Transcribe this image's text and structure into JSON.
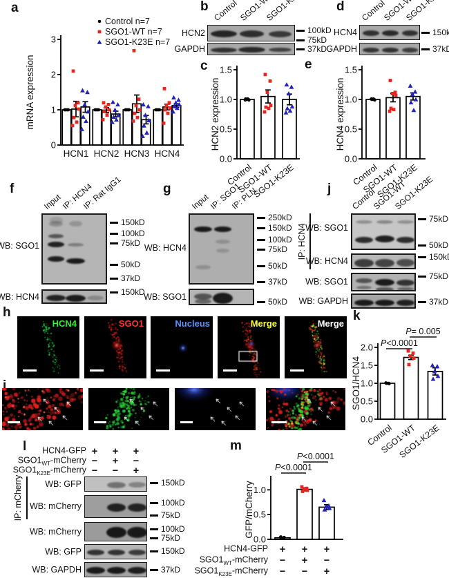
{
  "panel_labels": {
    "a": "a",
    "b": "b",
    "c": "c",
    "d": "d",
    "e": "e",
    "f": "f",
    "g": "g",
    "h": "h",
    "i": "i",
    "j": "j",
    "k": "k",
    "l": "l",
    "m": "m"
  },
  "colors": {
    "control": "#000000",
    "sgo1_wt": "#e8251f",
    "sgo1_k23e": "#2323bb",
    "green_channel": "#33ee33",
    "red_channel": "#ff3333",
    "blue_channel": "#5b93ff",
    "merge_yellow": "#ffff33",
    "merge_white": "#ffffff"
  },
  "chart_data": [
    {
      "id": "a",
      "type": "bar",
      "ylabel": "mRNA expression",
      "ylim": [
        0,
        3
      ],
      "yticks": [
        "0",
        "1",
        "2",
        "3"
      ],
      "categories": [
        "HCN1",
        "HCN2",
        "HCN3",
        "HCN4"
      ],
      "series": [
        {
          "name": "Control n=7",
          "marker": "circle",
          "color": "#000000"
        },
        {
          "name": "SGO1-WT n=7",
          "marker": "square",
          "color": "#e8251f"
        },
        {
          "name": "SGO1-K23E n=7",
          "marker": "triangle",
          "color": "#2323bb"
        }
      ],
      "bars": [
        [
          1.0,
          1.02,
          1.08
        ],
        [
          1.0,
          0.99,
          0.88
        ],
        [
          1.0,
          1.17,
          0.72
        ],
        [
          1.0,
          1.08,
          1.12
        ]
      ],
      "errors": [
        [
          0,
          0.22,
          0.15
        ],
        [
          0,
          0.07,
          0.08
        ],
        [
          0,
          0.25,
          0.12
        ],
        [
          0,
          0.08,
          0.05
        ]
      ],
      "points": [
        [
          [
            1.0,
            1.0,
            1.0,
            1.0,
            1.0,
            1.0,
            1.0
          ],
          [
            2.1,
            1.2,
            1.12,
            1.02,
            0.78,
            0.65,
            0.55
          ],
          [
            1.55,
            1.5,
            1.15,
            0.95,
            0.8,
            0.68,
            0.45
          ]
        ],
        [
          [
            1.0,
            1.0,
            1.0,
            1.0,
            1.0,
            1.0,
            1.0
          ],
          [
            1.2,
            1.15,
            1.08,
            1.0,
            0.95,
            0.85,
            0.72
          ],
          [
            1.22,
            1.15,
            1.0,
            0.85,
            0.8,
            0.72,
            0.65
          ]
        ],
        [
          [
            1.0,
            1.0,
            1.0,
            1.0,
            1.0,
            1.0,
            1.0
          ],
          [
            2.68,
            1.3,
            1.12,
            1.0,
            0.9,
            0.78,
            0.68
          ],
          [
            1.15,
            1.1,
            0.85,
            0.7,
            0.55,
            0.35,
            0.25
          ]
        ],
        [
          [
            1.0,
            1.0,
            1.0,
            1.0,
            1.0,
            1.0,
            1.0
          ],
          [
            1.6,
            1.2,
            1.12,
            1.05,
            1.0,
            0.9,
            0.62
          ],
          [
            1.35,
            1.28,
            1.2,
            1.15,
            1.1,
            1.05,
            0.95
          ]
        ]
      ],
      "legend_position": "top-left",
      "grid": false
    },
    {
      "id": "c",
      "type": "bar",
      "ylabel": "HCN2 expression",
      "ylim": [
        0,
        1.5
      ],
      "yticks": [
        "0.0",
        "0.5",
        "1.0",
        "1.5"
      ],
      "categories": [
        "Control",
        "SGO1-WT",
        "SGO1-K23E"
      ],
      "series": [
        {
          "name": "Control",
          "marker": "circle",
          "color": "#000000"
        },
        {
          "name": "SGO1-WT",
          "marker": "square",
          "color": "#e8251f"
        },
        {
          "name": "SGO1-K23E",
          "marker": "triangle",
          "color": "#2323bb"
        }
      ],
      "values": [
        1.0,
        1.05,
        1.0
      ],
      "errors": [
        0.01,
        0.11,
        0.09
      ],
      "points": [
        [
          1.01,
          1.0,
          1.0,
          0.99,
          1.0,
          1.01,
          0.99
        ],
        [
          1.42,
          1.31,
          1.12,
          0.9,
          0.87,
          0.85,
          0.79
        ],
        [
          1.25,
          1.21,
          1.1,
          0.88,
          0.85,
          0.81,
          0.78
        ]
      ],
      "grid": false
    },
    {
      "id": "e",
      "type": "bar",
      "ylabel": "HCN4 expression",
      "ylim": [
        0,
        1.5
      ],
      "yticks": [
        "0.0",
        "0.5",
        "1.0",
        "1.5"
      ],
      "categories": [
        "Control",
        "SGO1-WT",
        "SGO1-K23E"
      ],
      "series": [
        {
          "name": "Control",
          "marker": "circle",
          "color": "#000000"
        },
        {
          "name": "SGO1-WT",
          "marker": "square",
          "color": "#e8251f"
        },
        {
          "name": "SGO1-K23E",
          "marker": "triangle",
          "color": "#2323bb"
        }
      ],
      "values": [
        1.0,
        1.03,
        1.05
      ],
      "errors": [
        0.01,
        0.07,
        0.06
      ],
      "points": [
        [
          1.01,
          1.0,
          1.0,
          0.99,
          1.0,
          1.01
        ],
        [
          1.32,
          1.12,
          1.1,
          1.07,
          0.85,
          0.83,
          0.8
        ],
        [
          1.23,
          1.13,
          1.09,
          1.0,
          0.95,
          0.82
        ]
      ],
      "grid": false
    },
    {
      "id": "k",
      "type": "bar",
      "ylabel": "SGO1/HCN4",
      "ylim": [
        0,
        2
      ],
      "yticks": [
        "0.0",
        "0.5",
        "1.0",
        "1.5",
        "2.0"
      ],
      "categories": [
        "Control",
        "SGO1-WT",
        "SGO1-K23E"
      ],
      "series": [
        {
          "name": "Control",
          "marker": "circle",
          "color": "#000000"
        },
        {
          "name": "SGO1-WT",
          "marker": "square",
          "color": "#e8251f"
        },
        {
          "name": "SGO1-K23E",
          "marker": "triangle",
          "color": "#2323bb"
        }
      ],
      "values": [
        1.0,
        1.72,
        1.33
      ],
      "errors": [
        0.01,
        0.06,
        0.1
      ],
      "points": [
        [
          1.01,
          1.0,
          1.0,
          0.99,
          1.0
        ],
        [
          1.9,
          1.84,
          1.76,
          1.7,
          1.52
        ],
        [
          1.5,
          1.47,
          1.33,
          1.2,
          1.12
        ]
      ],
      "significance": [
        {
          "between": [
            0,
            1
          ],
          "label": "P<0.0001"
        },
        {
          "between": [
            1,
            2
          ],
          "label": "P= 0.005"
        }
      ],
      "grid": false
    },
    {
      "id": "m",
      "type": "bar",
      "ylabel": "GFP/mCherry",
      "ylim": [
        0,
        1.2
      ],
      "yticks": [
        "0.0",
        "0.5",
        "1.0"
      ],
      "categories": [
        "",
        "",
        ""
      ],
      "series": [
        {
          "name": "HCN4-GFP only",
          "marker": "circle",
          "color": "#000000"
        },
        {
          "name": "+SGO1-WT-mCherry",
          "marker": "square",
          "color": "#e8251f"
        },
        {
          "name": "+SGO1-K23E-mCherry",
          "marker": "triangle",
          "color": "#2323bb"
        }
      ],
      "values": [
        0.03,
        1.01,
        0.65
      ],
      "errors": [
        0.01,
        0.03,
        0.05
      ],
      "points": [
        [
          0.05,
          0.03,
          0.02,
          0.04,
          0.03,
          0.02,
          0.04
        ],
        [
          1.06,
          1.03,
          1.01,
          0.99,
          0.97
        ],
        [
          0.79,
          0.68,
          0.66,
          0.63,
          0.6
        ]
      ],
      "significance": [
        {
          "between": [
            0,
            1
          ],
          "label": "P<0.0001"
        },
        {
          "between": [
            1,
            2
          ],
          "label": "P<0.0001"
        }
      ],
      "matrix": {
        "rows": [
          {
            "pre": "HCN4-GFP",
            "sub": "",
            "post": "",
            "values": [
              "+",
              "+",
              "+"
            ]
          },
          {
            "pre": "SGO1",
            "sub": "WT",
            "post": "-mCherry",
            "values": [
              "−",
              "+",
              "−"
            ]
          },
          {
            "pre": "SGO1",
            "sub": "K23E",
            "post": "-mCherry",
            "values": [
              "−",
              "−",
              "+"
            ]
          }
        ]
      },
      "grid": false
    }
  ],
  "blots": {
    "b": {
      "lanes": [
        "Control",
        "SGO1-WT",
        "SGO1-K23E"
      ],
      "rows": [
        {
          "label": "HCN2"
        },
        {
          "label": "GAPDH"
        }
      ],
      "markers": [
        "100kD",
        "75kD",
        "37kD"
      ]
    },
    "d": {
      "lanes": [
        "Control",
        "SGO1-WT",
        "SGO1-K23E"
      ],
      "rows": [
        {
          "label": "HCN4"
        },
        {
          "label": "GAPDH"
        }
      ],
      "markers": [
        "150kD",
        "37kD"
      ]
    },
    "f": {
      "lanes": [
        "Input",
        "IP: HCN4",
        "IP: Rat IgG1"
      ],
      "rows": [
        {
          "label": "WB: SGO1"
        },
        {
          "label": "WB: HCN4"
        }
      ],
      "markers": [
        "150kD",
        "100kD",
        "75kD",
        "50kD",
        "37kD",
        "150kD"
      ]
    },
    "g": {
      "lanes": [
        "Input",
        "IP: SGO1",
        "IP: PLN"
      ],
      "rows": [
        {
          "label": "WB: HCN4"
        },
        {
          "label": "WB: SGO1"
        }
      ],
      "markers": [
        "250kD",
        "150kD",
        "100kD",
        "75kD",
        "50kD",
        "37kD",
        "50kD"
      ]
    },
    "j": {
      "ip_label": "IP: HCN4",
      "lanes": [
        "Control",
        "SGO1-WT",
        "SGO1-K23E"
      ],
      "rows": [
        {
          "label": "WB: SGO1"
        },
        {
          "label": "WB: HCN4"
        },
        {
          "label": "WB: SGO1"
        },
        {
          "label": "WB: GAPDH"
        }
      ],
      "markers": [
        "75kD",
        "50kD",
        "150kD",
        "75kD",
        "37kD"
      ]
    },
    "l": {
      "ip_label": "IP: mCherry",
      "conditions": [
        {
          "pre": "HCN4-GFP",
          "sub": "",
          "post": "",
          "values": [
            "+",
            "+",
            "+"
          ]
        },
        {
          "pre": "SGO1",
          "sub": "WT",
          "post": "-mCherry",
          "values": [
            "−",
            "+",
            "−"
          ]
        },
        {
          "pre": "SGO1",
          "sub": "K23E",
          "post": "-mCherry",
          "values": [
            "−",
            "−",
            "+"
          ]
        }
      ],
      "rows": [
        {
          "label": "WB: GFP"
        },
        {
          "label": "WB: mCherry"
        },
        {
          "label": "WB: mCherry"
        },
        {
          "label": "WB: GFP"
        },
        {
          "label": "WB: GAPDH"
        }
      ],
      "markers": [
        "150kD",
        "100kD",
        "75kD",
        "100kD",
        "75kD",
        "150kD",
        "37kD"
      ]
    }
  },
  "microscopy": {
    "h_labels": [
      {
        "text": "HCN4",
        "color": "#33ee33"
      },
      {
        "text": "SGO1",
        "color": "#ff3333"
      },
      {
        "text": "Nucleus",
        "color": "#5b93ff"
      },
      {
        "text": "Merge",
        "color": "#ffff33"
      },
      {
        "text": "Merge",
        "color": "#ffffff"
      }
    ]
  }
}
